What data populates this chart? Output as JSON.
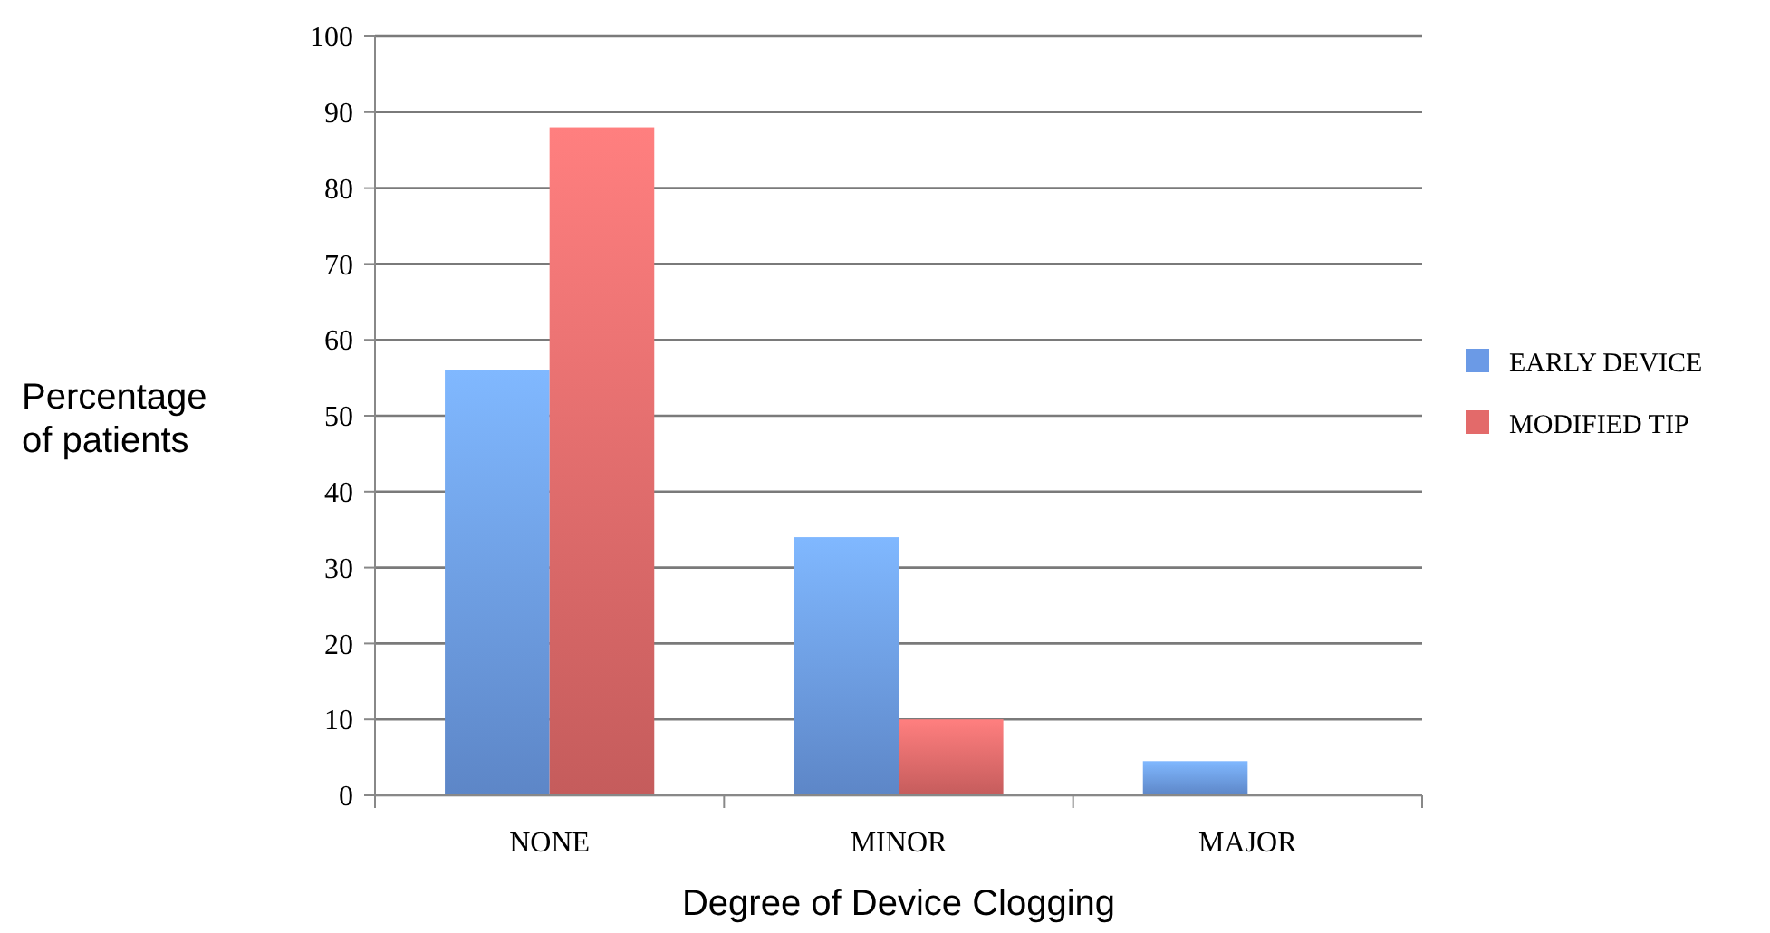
{
  "chart_data": {
    "type": "bar",
    "xlabel": "Degree of Device Clogging",
    "ylabel": "Percentage of patients",
    "categories": [
      "NONE",
      "MINOR",
      "MAJOR"
    ],
    "series": [
      {
        "name": "EARLY DEVICE",
        "color": "#6b9ae6",
        "values": [
          56,
          34,
          4.5
        ]
      },
      {
        "name": "MODIFIED TIP",
        "color": "#e36a6a",
        "values": [
          88,
          10,
          0
        ]
      }
    ],
    "ylim": [
      0,
      100
    ],
    "yticks": [
      0,
      10,
      20,
      30,
      40,
      50,
      60,
      70,
      80,
      90,
      100
    ],
    "grid": "y",
    "legend": "right"
  }
}
